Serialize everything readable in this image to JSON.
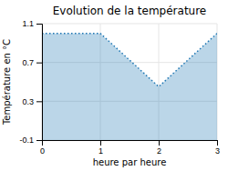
{
  "chart_data": {
    "type": "area",
    "title": "Evolution de la température",
    "xlabel": "heure par heure",
    "ylabel": "Température en °C",
    "x": [
      0,
      1,
      2,
      3
    ],
    "values": [
      1.0,
      1.0,
      0.45,
      1.0
    ],
    "xlim": [
      0,
      3
    ],
    "ylim": [
      -0.1,
      1.1
    ],
    "xticks": [
      0,
      1,
      2,
      3
    ],
    "yticks": [
      -0.1,
      0.3,
      0.7,
      1.1
    ],
    "grid": true,
    "line_style": "dotted"
  }
}
